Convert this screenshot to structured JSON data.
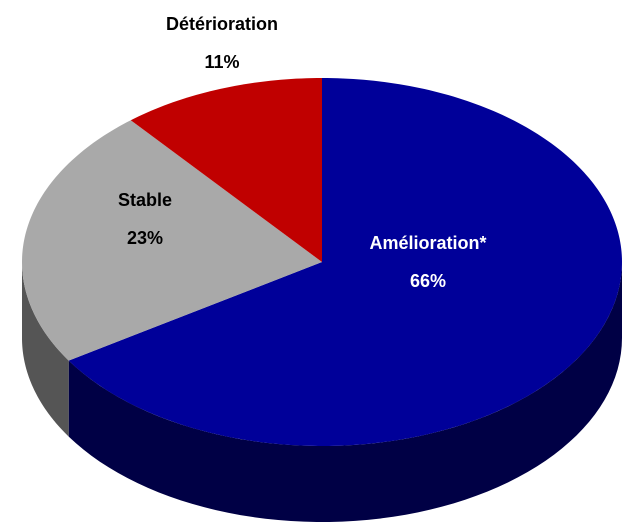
{
  "chart_data": {
    "type": "pie",
    "categories": [
      "Amélioration*",
      "Stable",
      "Détérioration"
    ],
    "values": [
      66,
      23,
      11
    ],
    "value_labels": [
      "66%",
      "23%",
      "11%"
    ],
    "colors": [
      "#000099",
      "#a9a9a9",
      "#c00000"
    ],
    "label_colors": [
      "#ffffff",
      "#000000",
      "#000000"
    ]
  }
}
